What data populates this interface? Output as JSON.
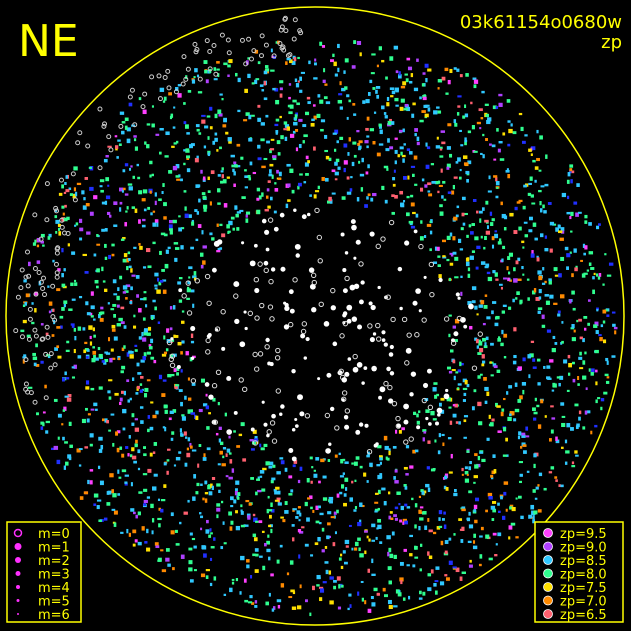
{
  "header": {
    "direction": "NE",
    "image_id": "03k61154o0680w",
    "mode": "zp"
  },
  "legend_magnitude": {
    "color": "#ff30ff",
    "entries": [
      "m=0",
      "m=1",
      "m=2",
      "m=3",
      "m=4",
      "m=5",
      "m=6"
    ]
  },
  "legend_zp": {
    "entries": [
      {
        "label": "zp=9.5",
        "color": "#ff40ff"
      },
      {
        "label": "zp=9.0",
        "color": "#b040ff"
      },
      {
        "label": "zp=8.5",
        "color": "#30c8ff"
      },
      {
        "label": "zp=8.0",
        "color": "#30ff90"
      },
      {
        "label": "zp=7.5",
        "color": "#ffe000"
      },
      {
        "label": "zp=7.0",
        "color": "#ff8a00"
      },
      {
        "label": "zp=6.5",
        "color": "#ff6070"
      }
    ]
  }
}
